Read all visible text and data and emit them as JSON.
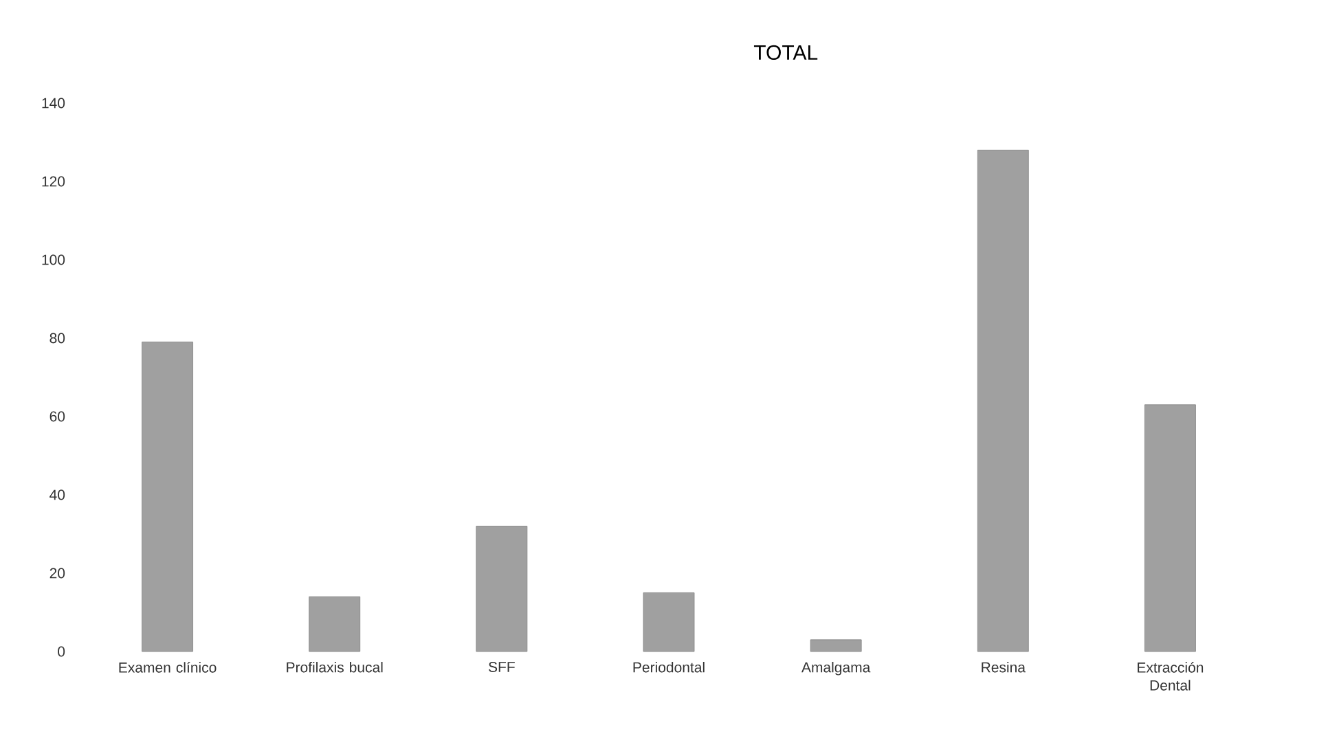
{
  "chart_data": {
    "type": "bar",
    "title": "TOTAL",
    "categories": [
      "Examen clínico",
      "Profilaxis bucal",
      "SFF",
      "Periodontal",
      "Amalgama",
      "Resina",
      "Extracción Dental"
    ],
    "values": [
      79,
      14,
      32,
      15,
      3,
      128,
      63
    ],
    "color": "#a0a0a0",
    "ylim": [
      0,
      140
    ],
    "yticks": [
      0,
      20,
      40,
      60,
      80,
      100,
      120,
      140
    ]
  }
}
